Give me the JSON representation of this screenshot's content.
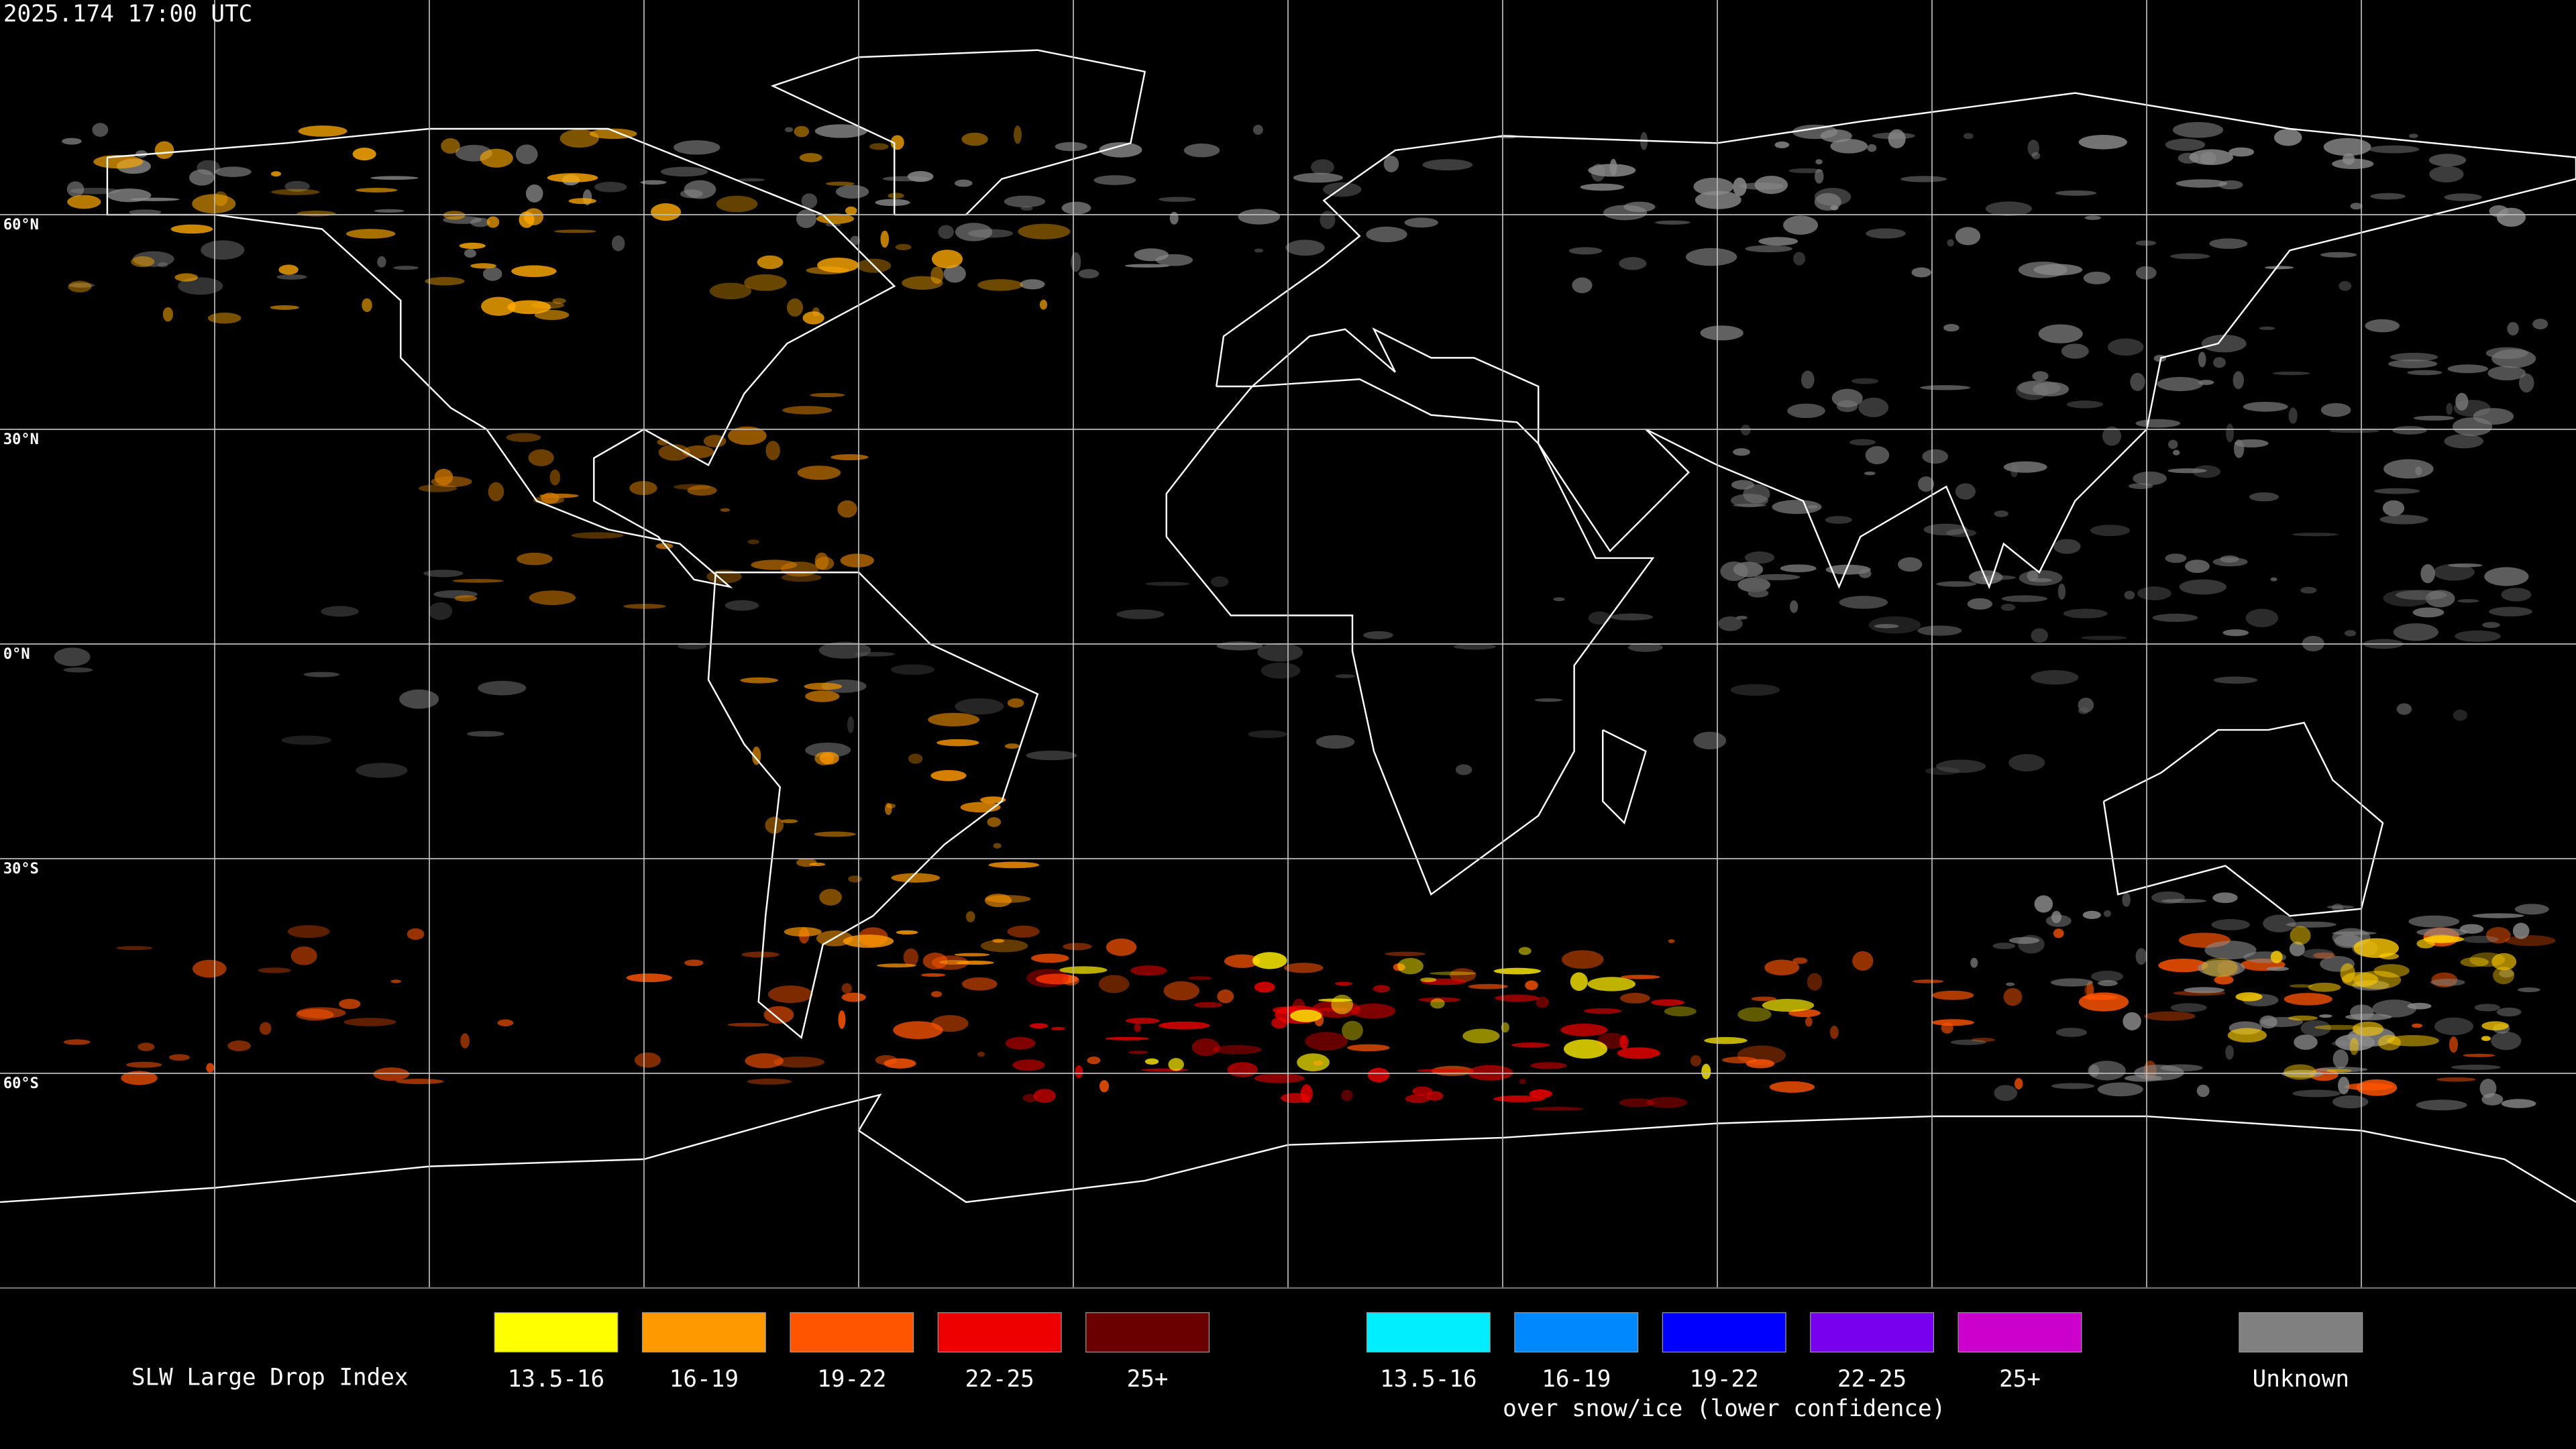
{
  "header": {
    "timestamp": "2025.174 17:00 UTC"
  },
  "map": {
    "lat_labels": [
      "60°N",
      "30°N",
      "0°N",
      "30°S",
      "60°S"
    ]
  },
  "legend": {
    "title": "SLW Large Drop Index",
    "groups": [
      {
        "items": [
          {
            "label": "13.5-16",
            "color": "#ffff00"
          },
          {
            "label": "16-19",
            "color": "#ff9900"
          },
          {
            "label": "19-22",
            "color": "#ff5500"
          },
          {
            "label": "22-25",
            "color": "#ee0000"
          },
          {
            "label": "25+",
            "color": "#6a0000"
          }
        ]
      },
      {
        "items": [
          {
            "label": "13.5-16",
            "color": "#00eeff"
          },
          {
            "label": "16-19",
            "color": "#0088ff"
          },
          {
            "label": "19-22",
            "color": "#0000ff"
          },
          {
            "label": "22-25",
            "color": "#7700ee"
          },
          {
            "label": "25+",
            "color": "#cc00cc"
          }
        ],
        "note": "over snow/ice (lower confidence)"
      }
    ],
    "unknown": {
      "label": "Unknown",
      "color": "#808080"
    }
  }
}
